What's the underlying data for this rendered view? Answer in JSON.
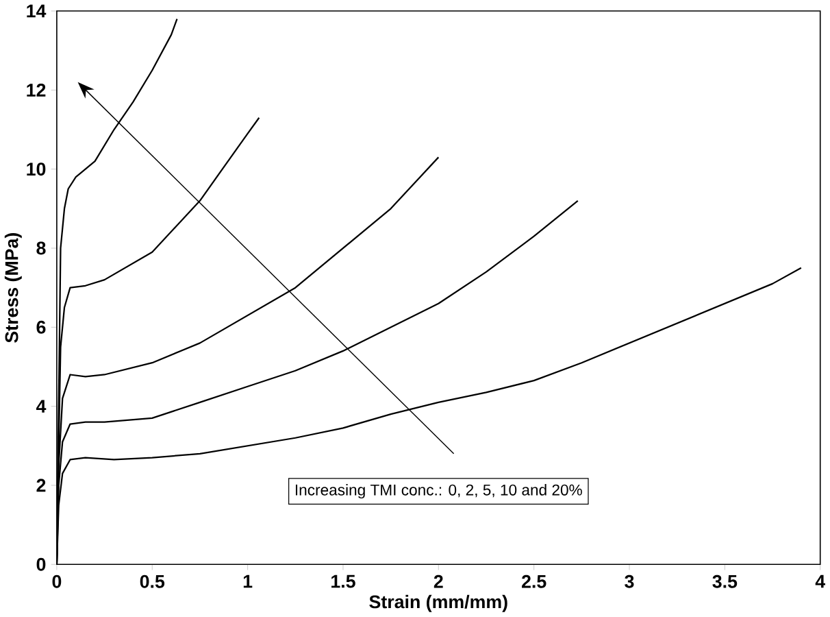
{
  "chart_data": {
    "type": "line",
    "xlabel": "Strain (mm/mm)",
    "ylabel": "Stress (MPa)",
    "annotations": [
      "Increasing TMI conc.: 0, 2, 5, 10 and 20%"
    ],
    "xlim": [
      0,
      4
    ],
    "ylim": [
      0,
      14
    ],
    "xticks": [
      0,
      0.5,
      1,
      1.5,
      2,
      2.5,
      3,
      3.5,
      4
    ],
    "yticks": [
      0,
      2,
      4,
      6,
      8,
      10,
      12,
      14
    ],
    "marker": "none",
    "line_style": "solid",
    "series": [
      {
        "color": "#000000",
        "x": [
          0,
          0.01,
          0.02,
          0.04,
          0.06,
          0.1,
          0.2,
          0.3,
          0.4,
          0.5,
          0.6,
          0.63
        ],
        "values": [
          0,
          4,
          8,
          9,
          9.5,
          9.8,
          10.2,
          11.0,
          11.7,
          12.5,
          13.4,
          13.8
        ]
      },
      {
        "color": "#000000",
        "x": [
          0,
          0.01,
          0.02,
          0.04,
          0.07,
          0.15,
          0.25,
          0.5,
          0.75,
          1.0,
          1.06
        ],
        "values": [
          0,
          3,
          5.5,
          6.5,
          7.0,
          7.05,
          7.2,
          7.9,
          9.2,
          10.9,
          11.3
        ]
      },
      {
        "color": "#000000",
        "x": [
          0,
          0.01,
          0.03,
          0.05,
          0.07,
          0.15,
          0.25,
          0.5,
          0.75,
          1.0,
          1.25,
          1.5,
          1.75,
          2.0
        ],
        "values": [
          0,
          2.5,
          4.2,
          4.5,
          4.8,
          4.75,
          4.8,
          5.1,
          5.6,
          6.3,
          7.0,
          8.0,
          9.0,
          10.3
        ]
      },
      {
        "color": "#000000",
        "x": [
          0,
          0.01,
          0.03,
          0.07,
          0.15,
          0.25,
          0.5,
          0.75,
          1.0,
          1.25,
          1.5,
          1.75,
          2.0,
          2.25,
          2.5,
          2.73
        ],
        "values": [
          0,
          2.0,
          3.1,
          3.55,
          3.6,
          3.6,
          3.7,
          4.1,
          4.5,
          4.9,
          5.4,
          6.0,
          6.6,
          7.4,
          8.3,
          9.2
        ]
      },
      {
        "color": "#000000",
        "x": [
          0,
          0.01,
          0.03,
          0.07,
          0.15,
          0.3,
          0.5,
          0.75,
          1.0,
          1.25,
          1.5,
          1.75,
          2.0,
          2.25,
          2.5,
          2.75,
          3.0,
          3.25,
          3.5,
          3.75,
          3.9
        ],
        "values": [
          0,
          1.5,
          2.3,
          2.65,
          2.7,
          2.65,
          2.7,
          2.8,
          3.0,
          3.2,
          3.45,
          3.8,
          4.1,
          4.35,
          4.65,
          5.1,
          5.6,
          6.1,
          6.6,
          7.1,
          7.5
        ]
      }
    ]
  }
}
